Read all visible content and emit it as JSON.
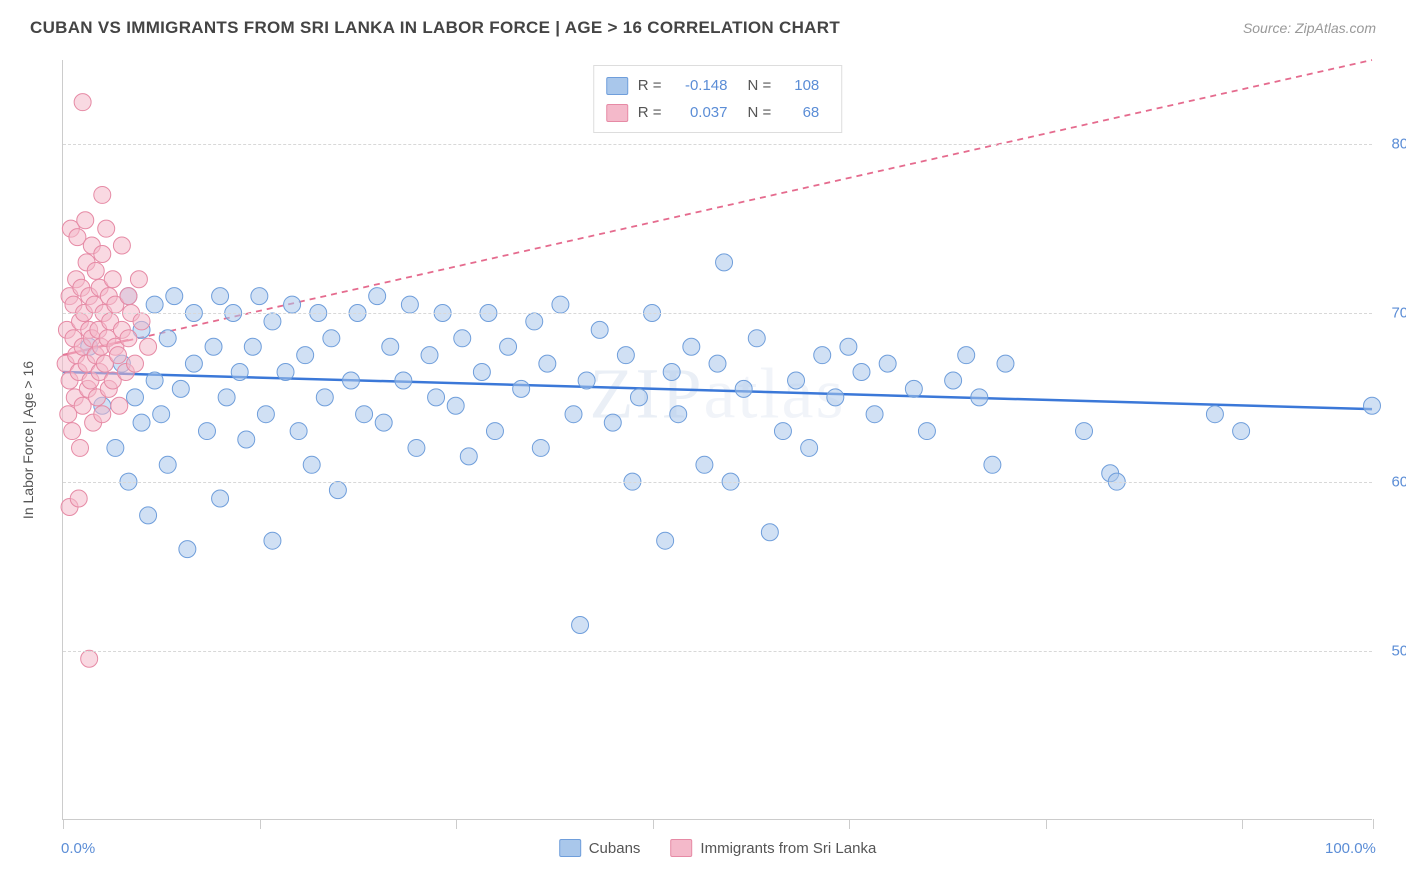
{
  "header": {
    "title": "CUBAN VS IMMIGRANTS FROM SRI LANKA IN LABOR FORCE | AGE > 16 CORRELATION CHART",
    "source": "Source: ZipAtlas.com"
  },
  "chart": {
    "type": "scatter",
    "ylabel": "In Labor Force | Age > 16",
    "background_color": "#ffffff",
    "grid_color": "#d8d8d8",
    "axis_color": "#cccccc",
    "tick_label_color": "#5b8dd6",
    "label_fontsize": 14,
    "title_fontsize": 17,
    "xlim": [
      0,
      100
    ],
    "ylim": [
      40,
      85
    ],
    "x_ticks": [
      0,
      15,
      30,
      45,
      60,
      75,
      90,
      100
    ],
    "x_labels": [
      {
        "val": 0,
        "text": "0.0%"
      },
      {
        "val": 100,
        "text": "100.0%"
      }
    ],
    "y_ticks": [
      {
        "val": 50,
        "text": "50.0%"
      },
      {
        "val": 60,
        "text": "60.0%"
      },
      {
        "val": 70,
        "text": "70.0%"
      },
      {
        "val": 80,
        "text": "80.0%"
      }
    ],
    "watermark": "ZIPatlas",
    "series": [
      {
        "name": "Cubans",
        "marker_color": "#a9c7eb",
        "marker_stroke": "#6f9edb",
        "marker_size": 8.5,
        "marker_opacity": 0.55,
        "line_color": "#3b78d8",
        "line_width": 2.5,
        "line_dash": "none",
        "R": "-0.148",
        "N": "108",
        "regression": {
          "x1": 0,
          "y1": 66.5,
          "x2": 100,
          "y2": 64.3
        },
        "points": [
          [
            2,
            68
          ],
          [
            3,
            64.5
          ],
          [
            4,
            62
          ],
          [
            4.5,
            67
          ],
          [
            5,
            71
          ],
          [
            5,
            60
          ],
          [
            5.5,
            65
          ],
          [
            6,
            63.5
          ],
          [
            6,
            69
          ],
          [
            6.5,
            58
          ],
          [
            7,
            66
          ],
          [
            7,
            70.5
          ],
          [
            7.5,
            64
          ],
          [
            8,
            68.5
          ],
          [
            8,
            61
          ],
          [
            8.5,
            71
          ],
          [
            9,
            65.5
          ],
          [
            9.5,
            56
          ],
          [
            10,
            67
          ],
          [
            10,
            70
          ],
          [
            11,
            63
          ],
          [
            11.5,
            68
          ],
          [
            12,
            71
          ],
          [
            12,
            59
          ],
          [
            12.5,
            65
          ],
          [
            13,
            70
          ],
          [
            13.5,
            66.5
          ],
          [
            14,
            62.5
          ],
          [
            14.5,
            68
          ],
          [
            15,
            71
          ],
          [
            15.5,
            64
          ],
          [
            16,
            69.5
          ],
          [
            16,
            56.5
          ],
          [
            17,
            66.5
          ],
          [
            17.5,
            70.5
          ],
          [
            18,
            63
          ],
          [
            18.5,
            67.5
          ],
          [
            19,
            61
          ],
          [
            19.5,
            70
          ],
          [
            20,
            65
          ],
          [
            20.5,
            68.5
          ],
          [
            21,
            59.5
          ],
          [
            22,
            66
          ],
          [
            22.5,
            70
          ],
          [
            23,
            64
          ],
          [
            24,
            71
          ],
          [
            24.5,
            63.5
          ],
          [
            25,
            68
          ],
          [
            26,
            66
          ],
          [
            26.5,
            70.5
          ],
          [
            27,
            62
          ],
          [
            28,
            67.5
          ],
          [
            28.5,
            65
          ],
          [
            29,
            70
          ],
          [
            30,
            64.5
          ],
          [
            30.5,
            68.5
          ],
          [
            31,
            61.5
          ],
          [
            32,
            66.5
          ],
          [
            32.5,
            70
          ],
          [
            33,
            63
          ],
          [
            34,
            68
          ],
          [
            35,
            65.5
          ],
          [
            36,
            69.5
          ],
          [
            36.5,
            62
          ],
          [
            37,
            67
          ],
          [
            38,
            70.5
          ],
          [
            39,
            64
          ],
          [
            39.5,
            51.5
          ],
          [
            40,
            66
          ],
          [
            41,
            69
          ],
          [
            42,
            63.5
          ],
          [
            43,
            67.5
          ],
          [
            43.5,
            60
          ],
          [
            44,
            65
          ],
          [
            45,
            70
          ],
          [
            46,
            56.5
          ],
          [
            46.5,
            66.5
          ],
          [
            47,
            64
          ],
          [
            48,
            68
          ],
          [
            49,
            61
          ],
          [
            50,
            67
          ],
          [
            50.5,
            73
          ],
          [
            51,
            60
          ],
          [
            52,
            65.5
          ],
          [
            53,
            68.5
          ],
          [
            54,
            57
          ],
          [
            55,
            63
          ],
          [
            56,
            66
          ],
          [
            57,
            62
          ],
          [
            58,
            67.5
          ],
          [
            59,
            65
          ],
          [
            60,
            68
          ],
          [
            61,
            66.5
          ],
          [
            62,
            64
          ],
          [
            63,
            67
          ],
          [
            65,
            65.5
          ],
          [
            66,
            63
          ],
          [
            68,
            66
          ],
          [
            69,
            67.5
          ],
          [
            70,
            65
          ],
          [
            71,
            61
          ],
          [
            72,
            67
          ],
          [
            78,
            63
          ],
          [
            80,
            60.5
          ],
          [
            80.5,
            60
          ],
          [
            88,
            64
          ],
          [
            90,
            63
          ],
          [
            100,
            64.5
          ]
        ]
      },
      {
        "name": "Immigrants from Sri Lanka",
        "marker_color": "#f4b9ca",
        "marker_stroke": "#e68aa5",
        "marker_size": 8.5,
        "marker_opacity": 0.55,
        "line_color": "#e56b8e",
        "line_width": 1.8,
        "line_dash": "6,5",
        "R": "0.037",
        "N": "68",
        "regression": {
          "x1": 0,
          "y1": 67.5,
          "x2": 100,
          "y2": 85
        },
        "solid_segment": {
          "x1": 0,
          "y1": 67.5,
          "x2": 5,
          "y2": 68.4
        },
        "points": [
          [
            0.2,
            67
          ],
          [
            0.3,
            69
          ],
          [
            0.4,
            64
          ],
          [
            0.5,
            71
          ],
          [
            0.5,
            66
          ],
          [
            0.6,
            75
          ],
          [
            0.7,
            63
          ],
          [
            0.8,
            68.5
          ],
          [
            0.8,
            70.5
          ],
          [
            0.9,
            65
          ],
          [
            1.0,
            72
          ],
          [
            1.0,
            67.5
          ],
          [
            1.1,
            74.5
          ],
          [
            1.2,
            66.5
          ],
          [
            1.3,
            69.5
          ],
          [
            1.3,
            62
          ],
          [
            1.4,
            71.5
          ],
          [
            1.5,
            68
          ],
          [
            1.5,
            64.5
          ],
          [
            1.6,
            70
          ],
          [
            1.7,
            75.5
          ],
          [
            1.8,
            67
          ],
          [
            1.8,
            73
          ],
          [
            1.9,
            65.5
          ],
          [
            2.0,
            69
          ],
          [
            2.0,
            71
          ],
          [
            2.1,
            66
          ],
          [
            2.2,
            74
          ],
          [
            2.2,
            68.5
          ],
          [
            2.3,
            63.5
          ],
          [
            2.4,
            70.5
          ],
          [
            2.5,
            67.5
          ],
          [
            2.5,
            72.5
          ],
          [
            2.6,
            65
          ],
          [
            2.7,
            69
          ],
          [
            2.8,
            71.5
          ],
          [
            2.8,
            66.5
          ],
          [
            2.9,
            68
          ],
          [
            3.0,
            73.5
          ],
          [
            3.0,
            64
          ],
          [
            3.1,
            70
          ],
          [
            3.2,
            67
          ],
          [
            3.3,
            75
          ],
          [
            3.4,
            68.5
          ],
          [
            3.5,
            65.5
          ],
          [
            3.5,
            71
          ],
          [
            3.6,
            69.5
          ],
          [
            3.8,
            66
          ],
          [
            3.8,
            72
          ],
          [
            4.0,
            68
          ],
          [
            4.0,
            70.5
          ],
          [
            4.2,
            67.5
          ],
          [
            4.3,
            64.5
          ],
          [
            4.5,
            69
          ],
          [
            4.5,
            74
          ],
          [
            4.8,
            66.5
          ],
          [
            5.0,
            71
          ],
          [
            5.0,
            68.5
          ],
          [
            5.2,
            70
          ],
          [
            5.5,
            67
          ],
          [
            5.8,
            72
          ],
          [
            6.0,
            69.5
          ],
          [
            6.5,
            68
          ],
          [
            0.5,
            58.5
          ],
          [
            1.2,
            59
          ],
          [
            2.0,
            49.5
          ],
          [
            1.5,
            82.5
          ],
          [
            3.0,
            77
          ]
        ]
      }
    ],
    "legend_top": [
      {
        "series_idx": 0,
        "R_label": "R =",
        "N_label": "N ="
      },
      {
        "series_idx": 1,
        "R_label": "R =",
        "N_label": "N ="
      }
    ]
  }
}
